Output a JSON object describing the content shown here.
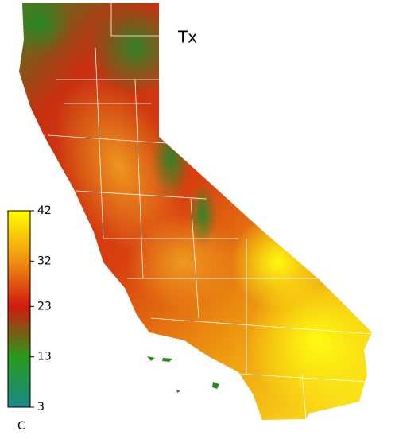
{
  "map": {
    "title": "Tx",
    "colorbar": {
      "unit": "C",
      "lim": [
        3,
        42
      ],
      "ticks": [
        3,
        13,
        23,
        32,
        42
      ],
      "colors": [
        "#1a8a8a",
        "#2a9a1a",
        "#d01a10",
        "#f09010",
        "#ffff00"
      ]
    }
  }
}
